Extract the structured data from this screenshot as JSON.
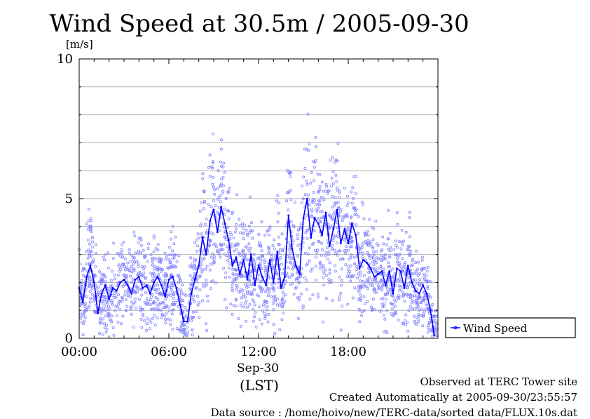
{
  "title": "Wind Speed at 30.5m / 2005-09-30",
  "chart_data": {
    "type": "line",
    "title": "Wind Speed at 30.5m / 2005-09-30",
    "ylabel": "[m/s]",
    "ylim": [
      0,
      10
    ],
    "yticks": [
      0,
      5,
      10
    ],
    "xlim_hours": [
      0,
      24
    ],
    "x_ticks": [
      {
        "hour": 0,
        "label": "00:00"
      },
      {
        "hour": 6,
        "label": "06:00"
      },
      {
        "hour": 12,
        "label": "12:00"
      },
      {
        "hour": 18,
        "label": "18:00"
      }
    ],
    "date_label": "Sep-30",
    "timezone_label": "(LST)",
    "grid": "horizontal",
    "legend": {
      "position": "right",
      "entries": [
        "Wind Speed"
      ]
    },
    "colors": {
      "line": "#0000ff",
      "points": "#8080ff"
    },
    "series": [
      {
        "name": "Wind Speed",
        "x_hours": [
          0,
          0.25,
          0.5,
          0.75,
          1,
          1.25,
          1.5,
          1.75,
          2,
          2.25,
          2.5,
          2.75,
          3,
          3.25,
          3.5,
          3.75,
          4,
          4.25,
          4.5,
          4.75,
          5,
          5.25,
          5.5,
          5.75,
          6,
          6.25,
          6.5,
          6.75,
          7,
          7.25,
          7.5,
          7.75,
          8,
          8.25,
          8.5,
          8.75,
          9,
          9.25,
          9.5,
          9.75,
          10,
          10.25,
          10.5,
          10.75,
          11,
          11.25,
          11.5,
          11.75,
          12,
          12.25,
          12.5,
          12.75,
          13,
          13.25,
          13.5,
          13.75,
          14,
          14.25,
          14.5,
          14.75,
          15,
          15.25,
          15.5,
          15.75,
          16,
          16.25,
          16.5,
          16.75,
          17,
          17.25,
          17.5,
          17.75,
          18,
          18.25,
          18.5,
          18.75,
          19,
          19.25,
          19.5,
          19.75,
          20,
          20.25,
          20.5,
          20.75,
          21,
          21.25,
          21.5,
          21.75,
          22,
          22.25,
          22.5,
          22.75,
          23,
          23.25,
          23.5,
          23.75
        ],
        "values": [
          1.8,
          1.3,
          2.2,
          2.6,
          2.0,
          0.9,
          1.6,
          1.9,
          1.4,
          1.8,
          1.7,
          2.0,
          2.1,
          1.9,
          1.6,
          2.1,
          2.2,
          1.8,
          1.9,
          1.6,
          2.0,
          2.2,
          1.9,
          1.5,
          2.1,
          2.2,
          1.8,
          1.2,
          0.6,
          0.6,
          1.6,
          2.1,
          2.6,
          3.6,
          3.0,
          4.2,
          4.6,
          3.8,
          4.7,
          4.1,
          3.5,
          2.6,
          2.9,
          2.3,
          2.8,
          2.1,
          3.0,
          1.9,
          2.6,
          2.2,
          1.9,
          2.8,
          2.0,
          3.1,
          1.8,
          2.2,
          4.4,
          3.2,
          2.6,
          2.3,
          4.3,
          5.0,
          3.6,
          4.3,
          4.1,
          3.7,
          4.5,
          3.3,
          3.9,
          4.6,
          3.4,
          3.9,
          3.4,
          4.1,
          3.7,
          2.5,
          2.8,
          2.7,
          2.5,
          2.2,
          2.3,
          2.4,
          1.9,
          2.4,
          1.6,
          2.5,
          2.4,
          1.8,
          2.6,
          2.0,
          1.7,
          1.6,
          1.9,
          1.6,
          1.0,
          0.1
        ]
      }
    ]
  },
  "notes": {
    "observed": "Observed at TERC Tower site",
    "created": "Created Automatically at 2005-09-30/23:55:57",
    "source": "Data source : /home/hoivo/new/TERC-data/sorted  data/FLUX.10s.dat"
  }
}
